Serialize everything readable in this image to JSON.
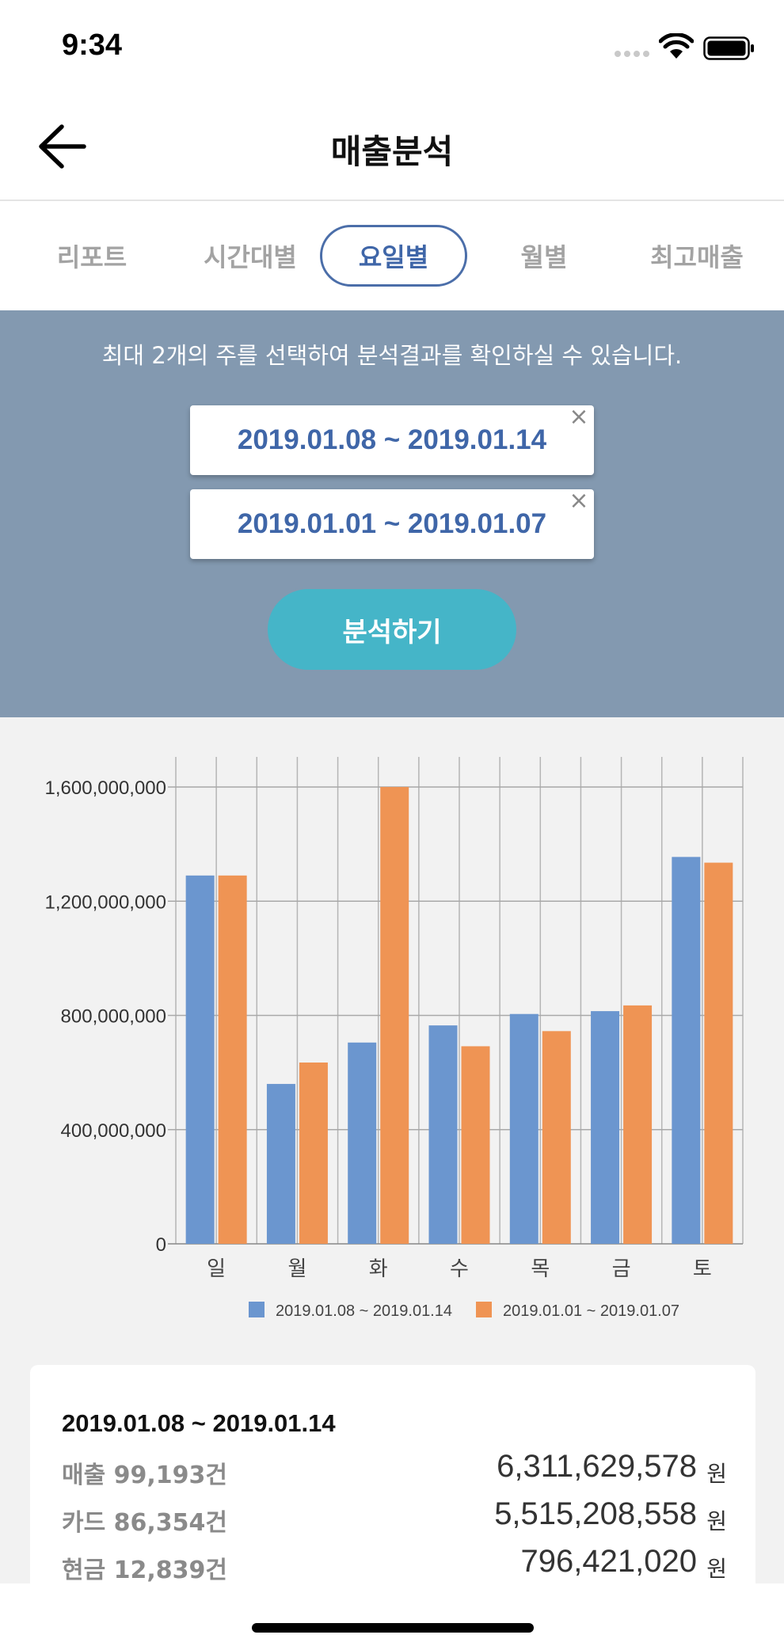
{
  "status_bar": {
    "time": "9:34"
  },
  "nav": {
    "title": "매출분석",
    "back_icon": "arrow-left-icon"
  },
  "tabs": [
    {
      "label": "리포트",
      "active": false
    },
    {
      "label": "시간대별",
      "active": false
    },
    {
      "label": "요일별",
      "active": true
    },
    {
      "label": "월별",
      "active": false
    },
    {
      "label": "최고매출",
      "active": false
    }
  ],
  "filter": {
    "hint": "최대 2개의 주를 선택하여 분석결과를 확인하실 수 있습니다.",
    "periods": [
      {
        "label": "2019.01.08 ~ 2019.01.14",
        "close": "×"
      },
      {
        "label": "2019.01.01 ~ 2019.01.07",
        "close": "×"
      }
    ],
    "analyze_label": "분석하기"
  },
  "chart_data": {
    "type": "bar",
    "categories": [
      "일",
      "월",
      "화",
      "수",
      "목",
      "금",
      "토"
    ],
    "series": [
      {
        "name": "2019.01.08 ~ 2019.01.14",
        "color": "#6b96cf",
        "values": [
          1290000000,
          560000000,
          705000000,
          765000000,
          805000000,
          815000000,
          1355000000
        ]
      },
      {
        "name": "2019.01.01 ~ 2019.01.07",
        "color": "#ef9454",
        "values": [
          1290000000,
          635000000,
          1600000000,
          692000000,
          745000000,
          835000000,
          1335000000
        ]
      }
    ],
    "ylim": [
      0,
      1600000000
    ],
    "yticks": [
      0,
      400000000,
      800000000,
      1200000000,
      1600000000
    ],
    "ytick_labels": [
      "0",
      "400,000,000",
      "800,000,000",
      "1,200,000,000",
      "1,600,000,000"
    ],
    "grid": true,
    "legend_position": "bottom"
  },
  "summary": {
    "period": "2019.01.08 ~ 2019.01.14",
    "rows": [
      {
        "label": "매출 99,193건",
        "value": "6,311,629,578",
        "unit": "원"
      },
      {
        "label": "카드 86,354건",
        "value": "5,515,208,558",
        "unit": "원"
      },
      {
        "label": "현금 12,839건",
        "value": "796,421,020",
        "unit": "원"
      }
    ]
  }
}
